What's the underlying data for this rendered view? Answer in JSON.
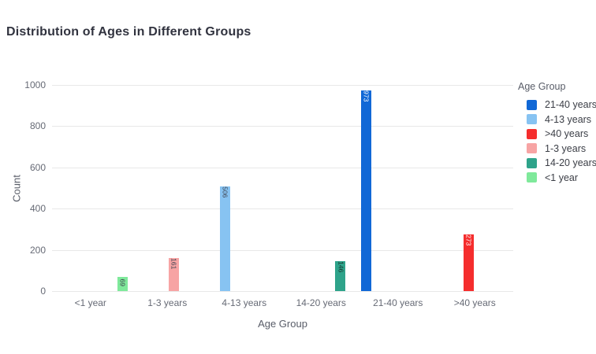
{
  "chart_data": {
    "type": "bar",
    "title": "Distribution of Ages in Different Groups",
    "xlabel": "Age Group",
    "ylabel": "Count",
    "legend_title": "Age Group",
    "legend_position": "right",
    "grid": "horizontal",
    "ylim": [
      0,
      1000
    ],
    "y_ticks": [
      0,
      200,
      400,
      600,
      800,
      1000
    ],
    "categories": [
      "<1 year",
      "1-3 years",
      "4-13 years",
      "14-20 years",
      "21-40 years",
      ">40 years"
    ],
    "series": [
      {
        "name": "21-40 years",
        "color": "#1168D6",
        "label_color": "#ffffff",
        "category": "21-40 years",
        "value": 973
      },
      {
        "name": "4-13 years",
        "color": "#87C3F2",
        "label_color": "#3f4450",
        "category": "4-13 years",
        "value": 506
      },
      {
        "name": ">40 years",
        "color": "#F52D2D",
        "label_color": "#ffffff",
        "category": ">40 years",
        "value": 273
      },
      {
        "name": "1-3 years",
        "color": "#F7A4A4",
        "label_color": "#3f4450",
        "category": "1-3 years",
        "value": 161
      },
      {
        "name": "14-20 years",
        "color": "#2EA38A",
        "label_color": "#17332c",
        "category": "14-20 years",
        "value": 146
      },
      {
        "name": "<1 year",
        "color": "#7FE99B",
        "label_color": "#3f4450",
        "value": 69,
        "category": "<1 year"
      }
    ],
    "text_colors": {
      "title": "#31333F",
      "ticks": "#666a75",
      "axis_titles": "#595d68",
      "gridline": "#e8e8e8"
    }
  }
}
